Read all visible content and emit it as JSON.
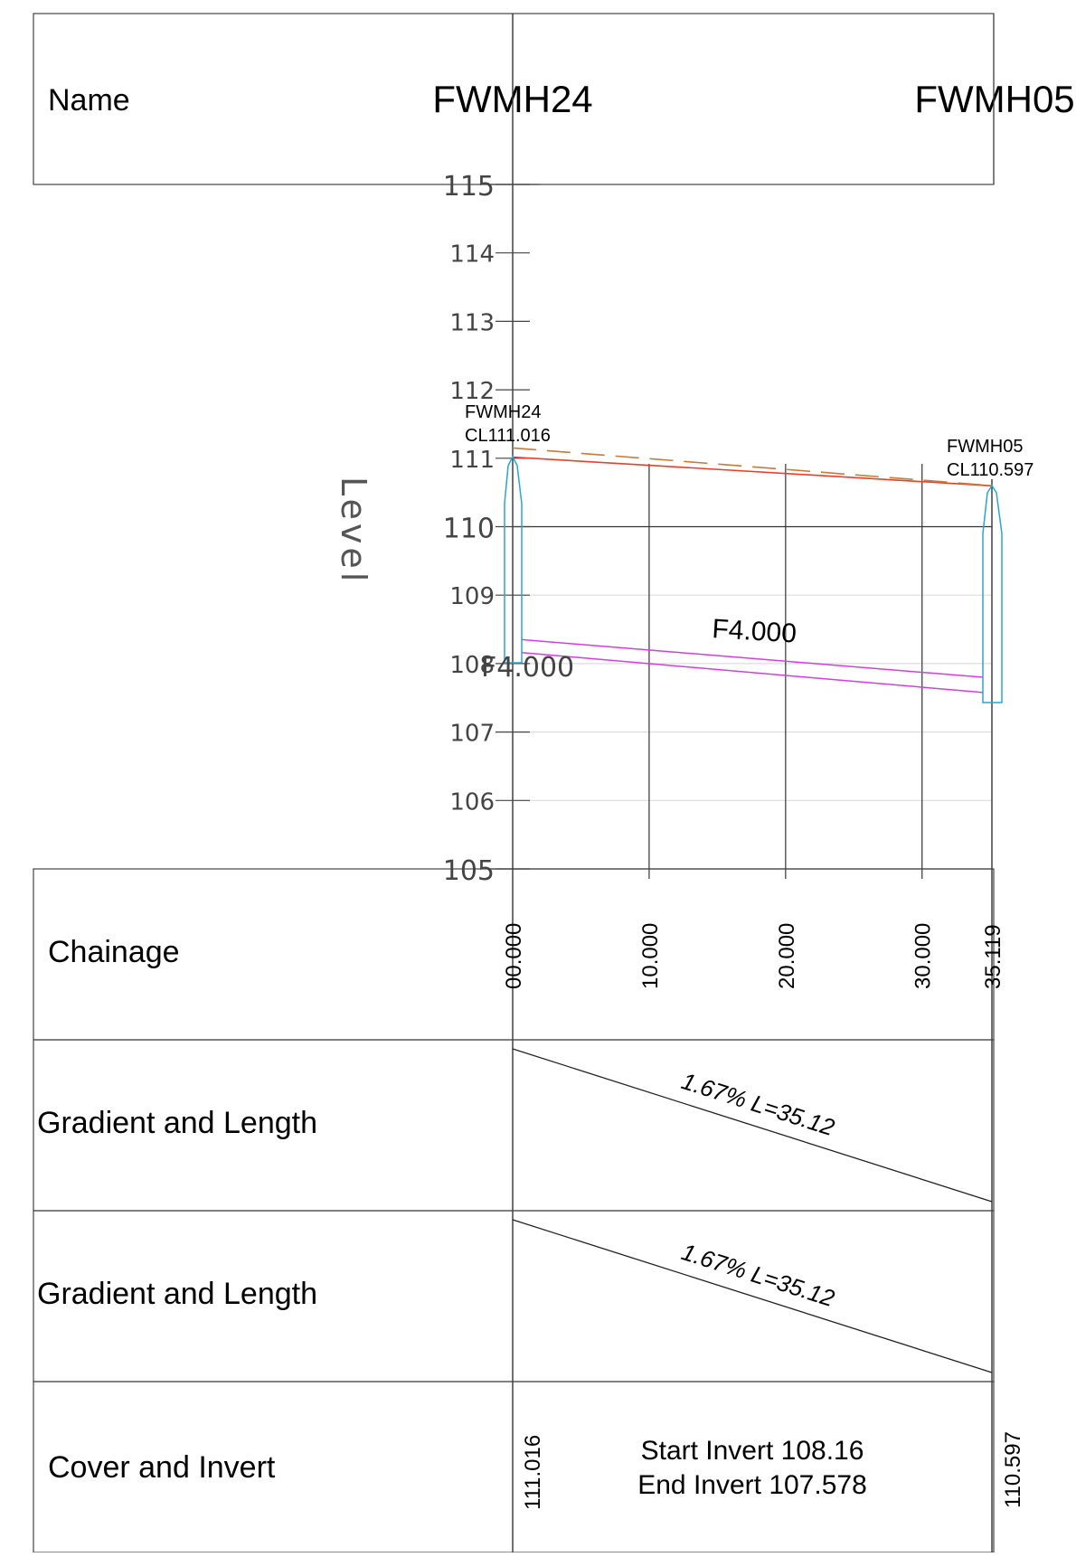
{
  "name_row": {
    "label": "Name",
    "manholes": [
      "FWMH24",
      "FWMH05"
    ]
  },
  "level_axis": {
    "title": "Level",
    "ticks": [
      "115",
      "114",
      "113",
      "112",
      "111",
      "110",
      "109",
      "108",
      "107",
      "106",
      "105"
    ]
  },
  "manholes": [
    {
      "name": "FWMH24",
      "cover_label": "CL111.016"
    },
    {
      "name": "FWMH05",
      "cover_label": "CL110.597"
    }
  ],
  "pipe": {
    "label_main": "F4.000",
    "label_start": "F4.000"
  },
  "chainage_row": {
    "label": "Chainage",
    "ticks": [
      "00.000",
      "10.000",
      "20.000",
      "30.000",
      "35.119"
    ]
  },
  "gradient_rows": [
    {
      "label": "Gradient and Length",
      "value": "1.67% L=35.12"
    },
    {
      "label": "Gradient and Length",
      "value": "1.67% L=35.12"
    }
  ],
  "cover_invert_row": {
    "label": "Cover and Invert",
    "start_cover": "111.016",
    "end_cover": "110.597",
    "start_invert": "Start Invert 108.16",
    "end_invert": "End Invert 107.578"
  },
  "chart_data": {
    "type": "line",
    "xlabel": "",
    "ylabel": "Level",
    "xlim": [
      0,
      35.119
    ],
    "ylim": [
      105,
      115
    ],
    "series": [
      {
        "x": [
          0,
          35.119
        ],
        "y": [
          111.016,
          110.597
        ],
        "color": "#e8402a"
      },
      {
        "x": [
          0,
          35.119
        ],
        "y": [
          111.15,
          110.6
        ],
        "color": "#c87a3c"
      },
      {
        "x": [
          0,
          35.119
        ],
        "y": [
          108.35,
          107.8
        ],
        "color": "#d040e0"
      },
      {
        "x": [
          0,
          35.119
        ],
        "y": [
          108.16,
          107.578
        ],
        "color": "#d040e0"
      }
    ],
    "grid": true
  },
  "colors": {
    "ground": "#e8402a",
    "existing": "#c87a3c",
    "pipe": "#d040e0",
    "manhole": "#2aa6d0",
    "grid": "#dddddd",
    "line": "#222222"
  }
}
